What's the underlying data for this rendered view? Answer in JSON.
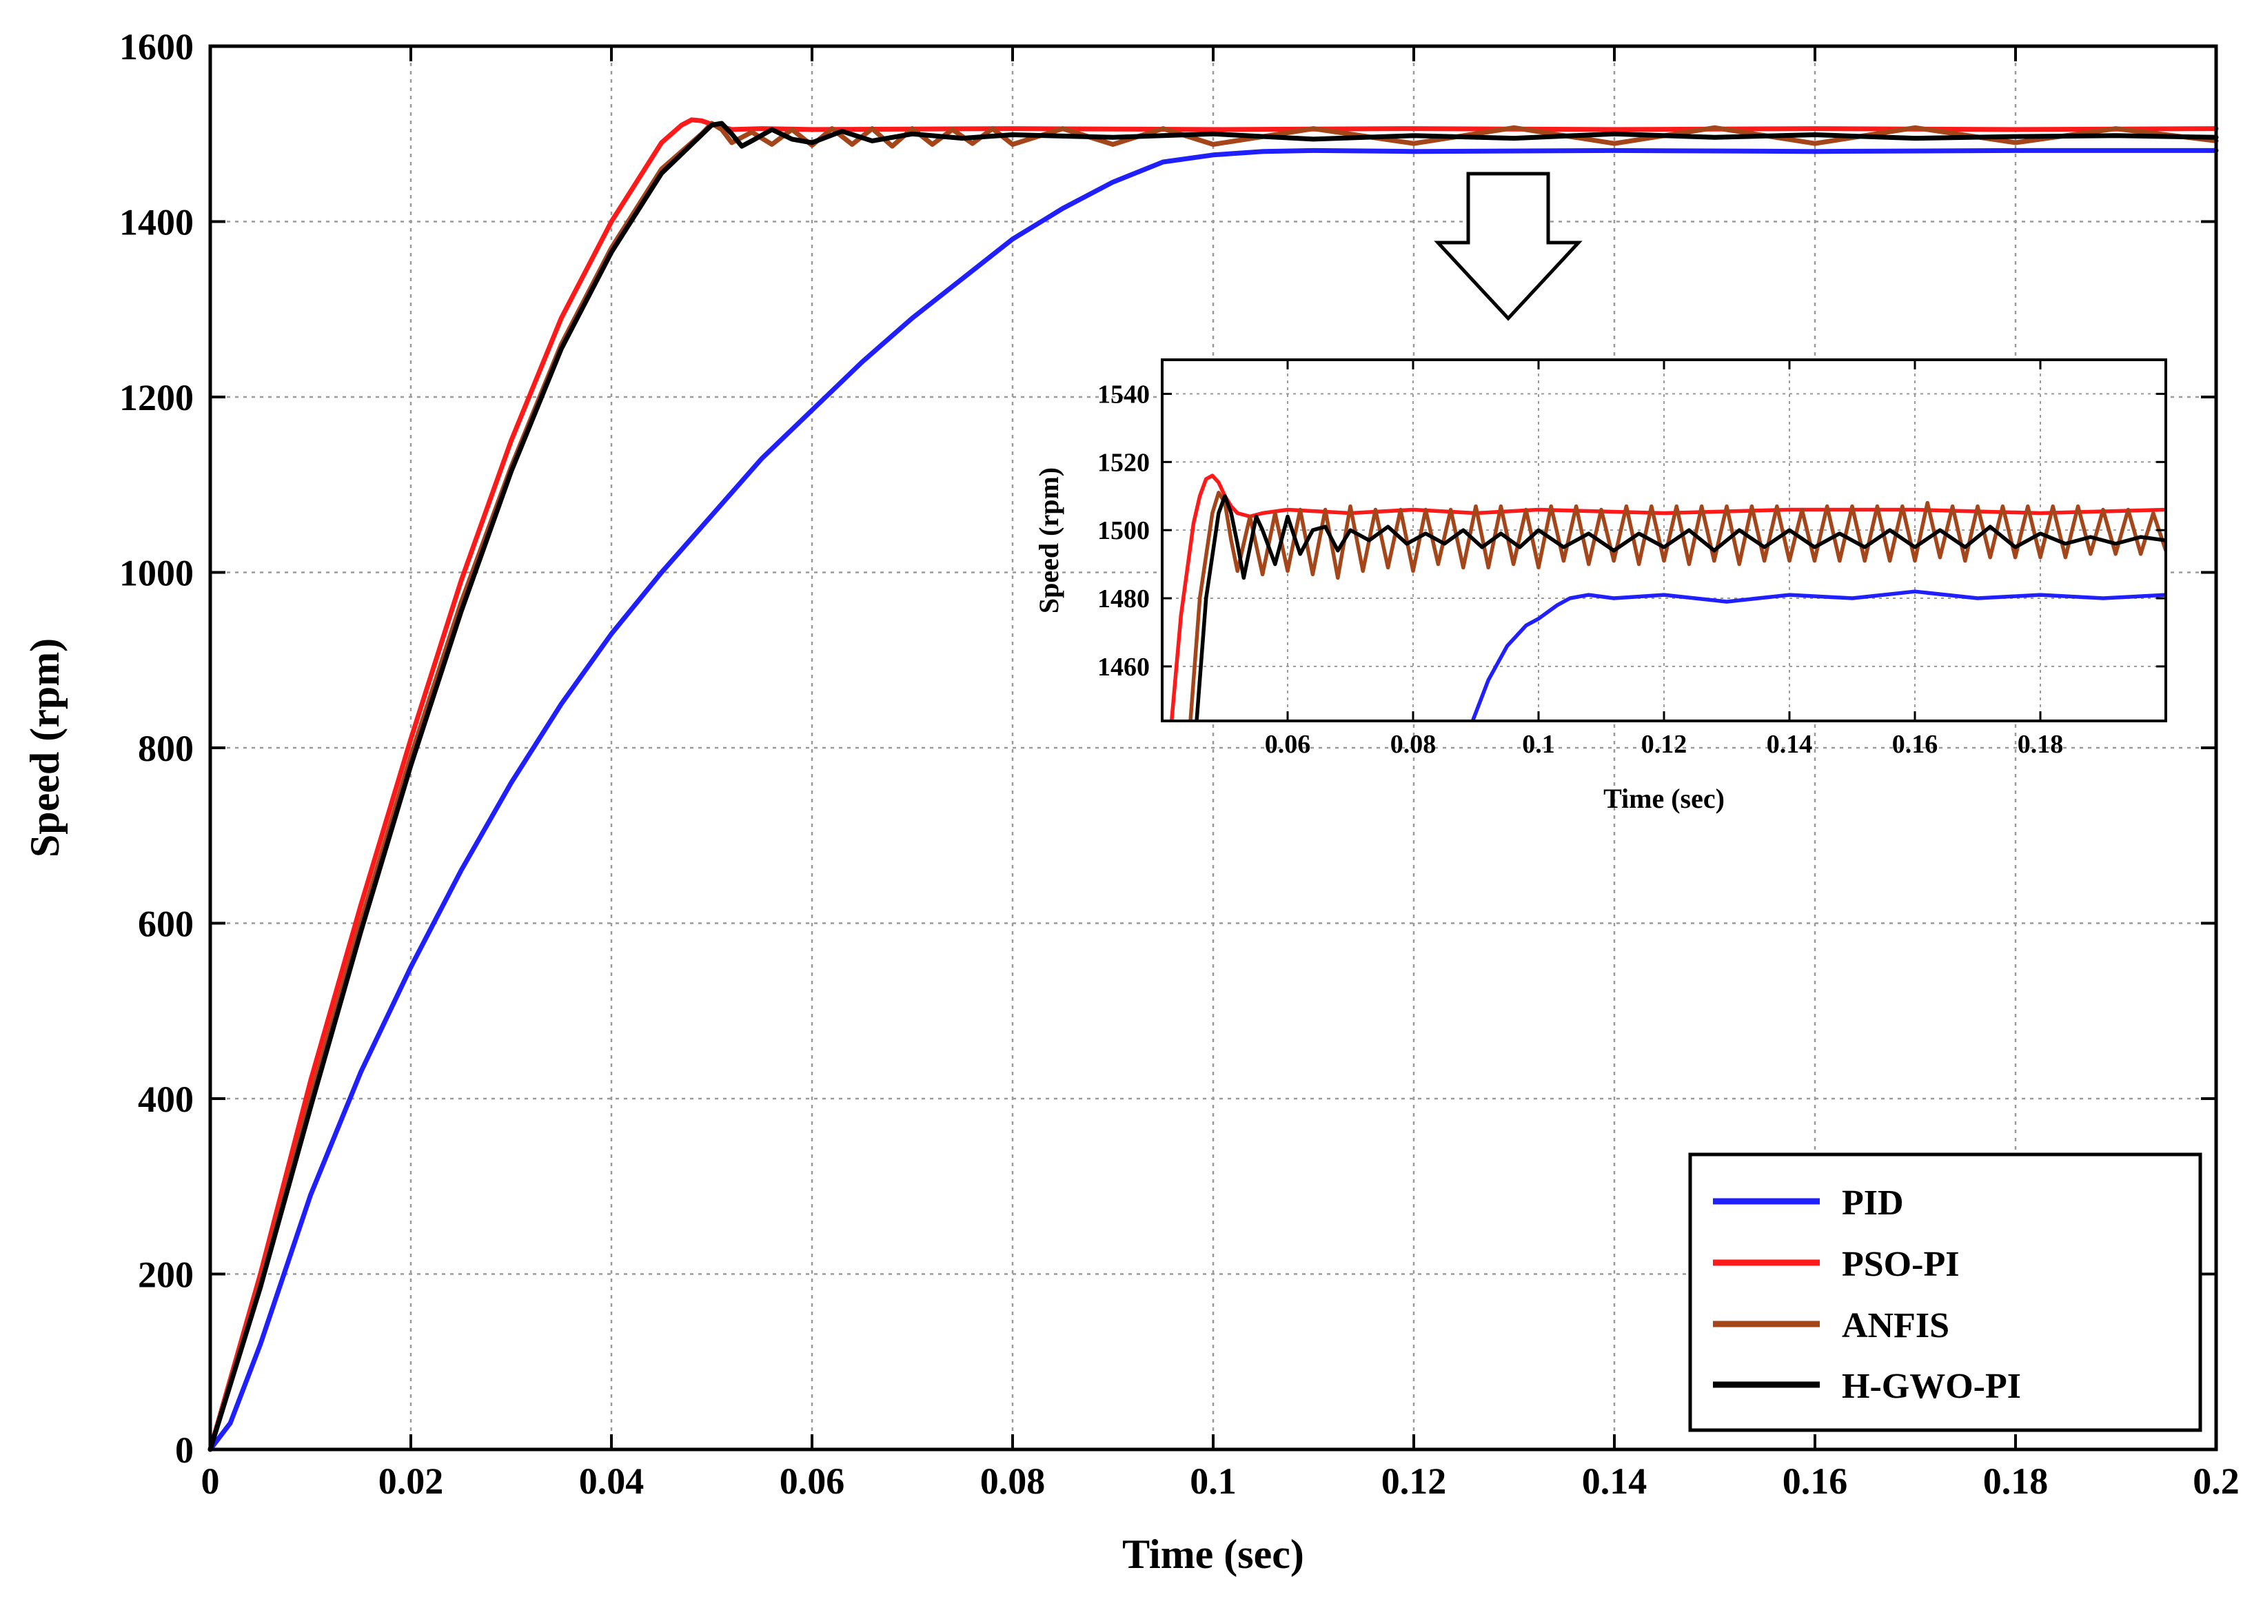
{
  "chart_data": [
    {
      "id": "main",
      "type": "line",
      "xlabel": "Time (sec)",
      "ylabel": "Speed (rpm)",
      "xlim": [
        0,
        0.2
      ],
      "ylim": [
        0,
        1600
      ],
      "xticks": [
        0,
        0.02,
        0.04,
        0.06,
        0.08,
        0.1,
        0.12,
        0.14,
        0.16,
        0.18,
        0.2
      ],
      "xtick_labels": [
        "0",
        "0.02",
        "0.04",
        "0.06",
        "0.08",
        "0.1",
        "0.12",
        "0.14",
        "0.16",
        "0.18",
        "0.2"
      ],
      "yticks": [
        0,
        200,
        400,
        600,
        800,
        1000,
        1200,
        1400,
        1600
      ],
      "ytick_labels": [
        "0",
        "200",
        "400",
        "600",
        "800",
        "1000",
        "1200",
        "1400",
        "1600"
      ],
      "grid": true,
      "legend_position": "bottom-right",
      "series": [
        {
          "name": "PID",
          "color": "#1f1fff",
          "x": [
            0,
            0.002,
            0.005,
            0.01,
            0.015,
            0.02,
            0.025,
            0.03,
            0.035,
            0.04,
            0.045,
            0.05,
            0.055,
            0.06,
            0.065,
            0.07,
            0.075,
            0.08,
            0.085,
            0.09,
            0.095,
            0.1,
            0.105,
            0.11,
            0.12,
            0.14,
            0.16,
            0.18,
            0.2
          ],
          "y": [
            0,
            30,
            120,
            290,
            430,
            550,
            660,
            760,
            850,
            930,
            1000,
            1065,
            1130,
            1185,
            1240,
            1290,
            1335,
            1380,
            1415,
            1445,
            1468,
            1476,
            1480,
            1481,
            1480,
            1481,
            1480,
            1481,
            1481
          ]
        },
        {
          "name": "PSO-PI",
          "color": "#ff1a1a",
          "x": [
            0,
            0.005,
            0.01,
            0.015,
            0.02,
            0.025,
            0.03,
            0.035,
            0.04,
            0.045,
            0.047,
            0.048,
            0.049,
            0.05,
            0.051,
            0.052,
            0.055,
            0.06,
            0.08,
            0.1,
            0.12,
            0.14,
            0.16,
            0.18,
            0.2
          ],
          "y": [
            0,
            200,
            420,
            620,
            810,
            990,
            1150,
            1290,
            1400,
            1490,
            1510,
            1516,
            1515,
            1511,
            1508,
            1505,
            1506,
            1505,
            1506,
            1505,
            1506,
            1505,
            1506,
            1505,
            1506
          ]
        },
        {
          "name": "ANFIS",
          "color": "#a5451a",
          "x": [
            0,
            0.005,
            0.01,
            0.015,
            0.02,
            0.025,
            0.03,
            0.035,
            0.04,
            0.045,
            0.049,
            0.05,
            0.051,
            0.052,
            0.054,
            0.056,
            0.058,
            0.06,
            0.062,
            0.064,
            0.066,
            0.068,
            0.07,
            0.072,
            0.074,
            0.076,
            0.078,
            0.08,
            0.085,
            0.09,
            0.095,
            0.1,
            0.11,
            0.12,
            0.13,
            0.14,
            0.15,
            0.16,
            0.17,
            0.18,
            0.19,
            0.2
          ],
          "y": [
            0,
            190,
            400,
            600,
            790,
            965,
            1120,
            1260,
            1370,
            1460,
            1500,
            1512,
            1505,
            1490,
            1502,
            1488,
            1505,
            1487,
            1506,
            1488,
            1506,
            1486,
            1506,
            1488,
            1505,
            1489,
            1506,
            1488,
            1506,
            1488,
            1506,
            1488,
            1506,
            1489,
            1507,
            1489,
            1507,
            1489,
            1507,
            1490,
            1506,
            1492
          ]
        },
        {
          "name": "H-GWO-PI",
          "color": "#000000",
          "x": [
            0,
            0.005,
            0.01,
            0.015,
            0.02,
            0.025,
            0.03,
            0.035,
            0.04,
            0.045,
            0.05,
            0.051,
            0.052,
            0.053,
            0.054,
            0.056,
            0.058,
            0.06,
            0.063,
            0.066,
            0.07,
            0.075,
            0.08,
            0.09,
            0.1,
            0.11,
            0.12,
            0.13,
            0.14,
            0.15,
            0.16,
            0.17,
            0.18,
            0.19,
            0.2
          ],
          "y": [
            0,
            185,
            390,
            590,
            780,
            955,
            1115,
            1255,
            1365,
            1455,
            1510,
            1512,
            1500,
            1486,
            1492,
            1505,
            1494,
            1490,
            1503,
            1492,
            1500,
            1495,
            1499,
            1496,
            1500,
            1494,
            1498,
            1495,
            1500,
            1496,
            1499,
            1495,
            1497,
            1498,
            1496
          ]
        }
      ]
    },
    {
      "id": "inset",
      "type": "line",
      "xlabel": "Time (sec)",
      "ylabel": "Speed (rpm)",
      "xlim": [
        0.04,
        0.2
      ],
      "ylim": [
        1444,
        1550
      ],
      "xticks": [
        0.06,
        0.08,
        0.1,
        0.12,
        0.14,
        0.16,
        0.18
      ],
      "xtick_labels": [
        "0.06",
        "0.08",
        "0.1",
        "0.12",
        "0.14",
        "0.16",
        "0.18"
      ],
      "yticks": [
        1460,
        1480,
        1500,
        1520,
        1540
      ],
      "ytick_labels": [
        "1460",
        "1480",
        "1500",
        "1520",
        "1540"
      ],
      "grid": true,
      "series": [
        {
          "name": "PID",
          "color": "#1f1fff",
          "x": [
            0.0895,
            0.092,
            0.095,
            0.098,
            0.1,
            0.103,
            0.105,
            0.108,
            0.112,
            0.12,
            0.13,
            0.14,
            0.15,
            0.16,
            0.17,
            0.18,
            0.19,
            0.2
          ],
          "y": [
            1444,
            1456,
            1466,
            1472,
            1474,
            1478,
            1480,
            1481,
            1480,
            1481,
            1479,
            1481,
            1480,
            1482,
            1480,
            1481,
            1480,
            1481
          ]
        },
        {
          "name": "PSO-PI",
          "color": "#ff1a1a",
          "x": [
            0.0415,
            0.043,
            0.045,
            0.046,
            0.047,
            0.048,
            0.049,
            0.05,
            0.051,
            0.052,
            0.054,
            0.056,
            0.06,
            0.07,
            0.08,
            0.09,
            0.1,
            0.12,
            0.14,
            0.16,
            0.18,
            0.2
          ],
          "y": [
            1444,
            1475,
            1502,
            1510,
            1515,
            1516,
            1514,
            1510,
            1507,
            1505,
            1504,
            1505,
            1506,
            1505,
            1506,
            1505,
            1506,
            1505,
            1506,
            1506,
            1505,
            1506
          ]
        },
        {
          "name": "ANFIS",
          "color": "#a5451a",
          "x": [
            0.0445,
            0.046,
            0.048,
            0.049,
            0.05,
            0.051,
            0.052,
            0.054,
            0.056,
            0.058,
            0.06,
            0.062,
            0.064,
            0.066,
            0.068,
            0.07,
            0.072,
            0.074,
            0.076,
            0.078,
            0.08,
            0.082,
            0.084,
            0.086,
            0.088,
            0.09,
            0.092,
            0.094,
            0.096,
            0.098,
            0.1,
            0.102,
            0.104,
            0.106,
            0.108,
            0.11,
            0.112,
            0.114,
            0.116,
            0.118,
            0.12,
            0.122,
            0.124,
            0.126,
            0.128,
            0.13,
            0.132,
            0.134,
            0.136,
            0.138,
            0.14,
            0.142,
            0.144,
            0.146,
            0.148,
            0.15,
            0.152,
            0.154,
            0.156,
            0.158,
            0.16,
            0.162,
            0.164,
            0.166,
            0.168,
            0.17,
            0.172,
            0.174,
            0.176,
            0.178,
            0.18,
            0.182,
            0.184,
            0.186,
            0.188,
            0.19,
            0.192,
            0.194,
            0.196,
            0.198,
            0.2
          ],
          "y": [
            1444,
            1480,
            1505,
            1511,
            1508,
            1497,
            1488,
            1504,
            1487,
            1505,
            1488,
            1506,
            1487,
            1506,
            1486,
            1507,
            1488,
            1506,
            1489,
            1506,
            1488,
            1506,
            1490,
            1506,
            1489,
            1507,
            1489,
            1507,
            1490,
            1506,
            1489,
            1507,
            1491,
            1507,
            1490,
            1506,
            1491,
            1507,
            1490,
            1507,
            1491,
            1507,
            1490,
            1507,
            1491,
            1507,
            1490,
            1507,
            1491,
            1507,
            1491,
            1506,
            1491,
            1507,
            1491,
            1507,
            1491,
            1507,
            1491,
            1507,
            1491,
            1508,
            1492,
            1507,
            1491,
            1507,
            1492,
            1507,
            1492,
            1507,
            1492,
            1507,
            1492,
            1507,
            1493,
            1506,
            1493,
            1506,
            1493,
            1505,
            1494
          ]
        },
        {
          "name": "H-GWO-PI",
          "color": "#000000",
          "x": [
            0.0455,
            0.047,
            0.049,
            0.05,
            0.051,
            0.052,
            0.053,
            0.054,
            0.055,
            0.056,
            0.058,
            0.06,
            0.062,
            0.064,
            0.066,
            0.068,
            0.07,
            0.073,
            0.076,
            0.079,
            0.082,
            0.085,
            0.088,
            0.091,
            0.094,
            0.097,
            0.1,
            0.104,
            0.108,
            0.112,
            0.116,
            0.12,
            0.124,
            0.128,
            0.132,
            0.136,
            0.14,
            0.144,
            0.148,
            0.152,
            0.156,
            0.16,
            0.164,
            0.168,
            0.172,
            0.176,
            0.18,
            0.184,
            0.188,
            0.192,
            0.196,
            0.2
          ],
          "y": [
            1444,
            1480,
            1505,
            1510,
            1505,
            1496,
            1486,
            1495,
            1504,
            1500,
            1490,
            1504,
            1493,
            1500,
            1501,
            1494,
            1500,
            1497,
            1501,
            1496,
            1499,
            1496,
            1500,
            1495,
            1499,
            1495,
            1500,
            1495,
            1499,
            1494,
            1499,
            1495,
            1500,
            1494,
            1500,
            1495,
            1500,
            1495,
            1499,
            1495,
            1500,
            1495,
            1500,
            1495,
            1501,
            1495,
            1499,
            1496,
            1498,
            1496,
            1498,
            1497
          ]
        }
      ]
    }
  ]
}
